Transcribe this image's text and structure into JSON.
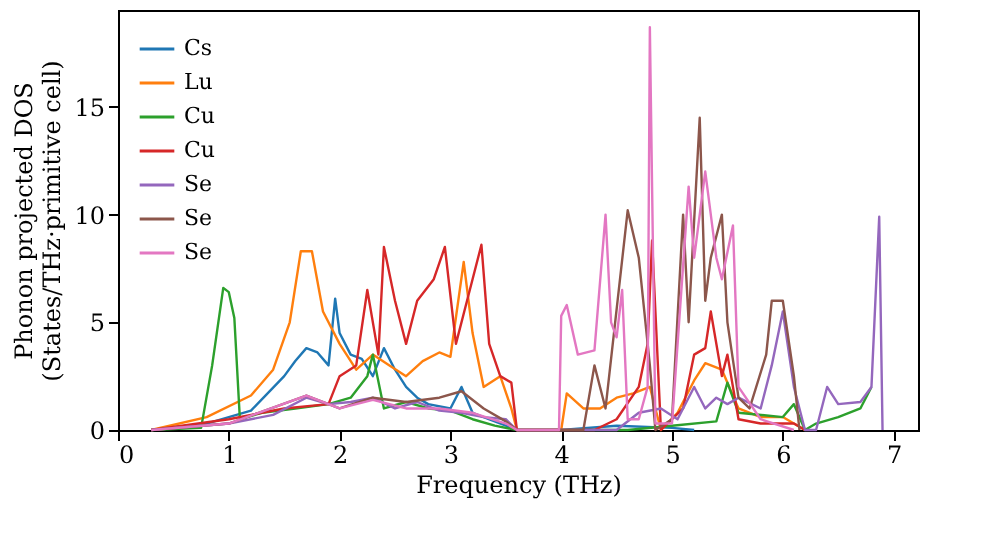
{
  "chart_data": {
    "type": "line",
    "xlabel": "Frequency (THz)",
    "ylabel": "Phonon projected DOS\n(States/THz·primitive cell)",
    "xlim": [
      0,
      7.22
    ],
    "ylim": [
      0,
      19.5
    ],
    "xticks": [
      0,
      1,
      2,
      3,
      4,
      5,
      6,
      7
    ],
    "yticks": [
      0,
      5,
      10,
      15
    ],
    "grid": false,
    "legend": "top left",
    "line_style": "solid",
    "marker": "none",
    "series": [
      {
        "name": "Cs",
        "color": "#1f77b4",
        "x": [
          0.3,
          0.8,
          1.2,
          1.5,
          1.6,
          1.7,
          1.8,
          1.9,
          1.96,
          2.0,
          2.1,
          2.2,
          2.3,
          2.4,
          2.5,
          2.6,
          2.7,
          2.8,
          3.0,
          3.1,
          3.2,
          3.4,
          3.6,
          4.0,
          4.5,
          5.0,
          5.2
        ],
        "values": [
          0,
          0.3,
          0.9,
          2.5,
          3.2,
          3.8,
          3.6,
          3.0,
          6.1,
          4.5,
          3.5,
          3.3,
          2.5,
          3.8,
          2.8,
          2.0,
          1.5,
          1.2,
          1.0,
          2.0,
          0.8,
          0.4,
          0,
          0,
          0.2,
          0.1,
          0
        ]
      },
      {
        "name": "Lu",
        "color": "#ff7f0e",
        "x": [
          0.3,
          0.8,
          1.2,
          1.4,
          1.55,
          1.65,
          1.75,
          1.85,
          2.0,
          2.15,
          2.3,
          2.45,
          2.6,
          2.75,
          2.9,
          3.0,
          3.12,
          3.2,
          3.3,
          3.45,
          3.55,
          3.6,
          4.0,
          4.05,
          4.2,
          4.35,
          4.5,
          4.65,
          4.8,
          4.9,
          5.05,
          5.2,
          5.3,
          5.45,
          5.6,
          5.8,
          6.0,
          6.2
        ],
        "values": [
          0,
          0.6,
          1.6,
          2.8,
          5.0,
          8.3,
          8.3,
          5.5,
          4.0,
          2.8,
          3.5,
          3.0,
          2.5,
          3.2,
          3.6,
          3.4,
          7.8,
          4.5,
          2.0,
          2.5,
          1.0,
          0,
          0,
          1.7,
          1.0,
          1.0,
          1.5,
          1.7,
          2.0,
          0,
          0.8,
          2.3,
          3.1,
          2.8,
          1.0,
          0.6,
          0.6,
          0
        ]
      },
      {
        "name": "Cu",
        "color": "#2ca02c",
        "x": [
          0.3,
          0.75,
          0.85,
          0.95,
          1.0,
          1.05,
          1.1,
          1.3,
          1.6,
          1.9,
          2.1,
          2.25,
          2.3,
          2.4,
          2.6,
          2.8,
          3.0,
          3.2,
          3.4,
          3.6,
          4.6,
          5.0,
          5.4,
          5.5,
          5.6,
          6.0,
          6.1,
          6.2,
          6.3,
          6.5,
          6.7,
          6.8
        ],
        "values": [
          0,
          0.1,
          3.0,
          6.6,
          6.4,
          5.2,
          0.5,
          0.8,
          1.0,
          1.2,
          1.5,
          2.5,
          3.5,
          1.0,
          1.3,
          1.0,
          0.9,
          0.5,
          0.2,
          0,
          0,
          0.2,
          0.4,
          2.2,
          0.8,
          0.6,
          1.2,
          0,
          0.3,
          0.6,
          1.0,
          2.0
        ]
      },
      {
        "name": "Cu",
        "color": "#d62728",
        "x": [
          0.3,
          1.0,
          1.5,
          1.9,
          2.0,
          2.15,
          2.25,
          2.35,
          2.4,
          2.5,
          2.6,
          2.7,
          2.85,
          2.95,
          3.05,
          3.15,
          3.2,
          3.28,
          3.35,
          3.45,
          3.55,
          3.6,
          4.3,
          4.5,
          4.7,
          4.78,
          4.82,
          4.9,
          5.1,
          5.2,
          5.3,
          5.35,
          5.45,
          5.5,
          5.6,
          5.8,
          6.1,
          6.2
        ],
        "values": [
          0,
          0.5,
          1.0,
          1.2,
          2.5,
          3.0,
          6.5,
          3.5,
          8.5,
          6.0,
          4.0,
          6.0,
          7.0,
          8.5,
          4.0,
          6.0,
          7.0,
          8.6,
          4.0,
          2.5,
          2.2,
          0,
          0,
          0.5,
          2.0,
          4.0,
          8.8,
          0,
          1.0,
          3.5,
          3.8,
          5.5,
          2.5,
          3.5,
          0.5,
          0.3,
          0.3,
          0
        ]
      },
      {
        "name": "Se",
        "color": "#9467bd",
        "x": [
          0.3,
          1.0,
          1.4,
          1.7,
          1.9,
          2.1,
          2.3,
          2.5,
          2.7,
          2.9,
          3.1,
          3.3,
          3.5,
          3.6,
          4.5,
          4.7,
          4.9,
          5.05,
          5.2,
          5.3,
          5.4,
          5.5,
          5.6,
          5.8,
          5.9,
          6.0,
          6.1,
          6.2,
          6.3,
          6.4,
          6.5,
          6.7,
          6.8,
          6.87,
          6.9
        ],
        "values": [
          0,
          0.3,
          0.7,
          1.5,
          1.2,
          1.3,
          1.5,
          1.0,
          1.3,
          0.9,
          0.8,
          0.6,
          0.5,
          0,
          0,
          0.8,
          1.0,
          0.5,
          2.0,
          1.0,
          1.5,
          1.2,
          1.5,
          1.0,
          3.0,
          5.5,
          2.0,
          0,
          0,
          2.0,
          1.2,
          1.3,
          2.0,
          9.9,
          0
        ]
      },
      {
        "name": "Se",
        "color": "#8c564b",
        "x": [
          0.3,
          1.0,
          1.7,
          2.0,
          2.3,
          2.6,
          2.9,
          3.1,
          3.3,
          3.5,
          3.6,
          4.2,
          4.3,
          4.4,
          4.6,
          4.7,
          4.8,
          4.85,
          5.0,
          5.1,
          5.15,
          5.25,
          5.3,
          5.35,
          5.45,
          5.5,
          5.6,
          5.7,
          5.85,
          5.9,
          6.0,
          6.1,
          6.15
        ],
        "values": [
          0,
          0.3,
          1.6,
          1.0,
          1.5,
          1.3,
          1.5,
          1.8,
          1.0,
          0.4,
          0,
          0,
          3.0,
          1.0,
          10.2,
          8.0,
          3.0,
          0,
          0.5,
          10.0,
          5.0,
          14.5,
          6.0,
          8.0,
          10.0,
          5.0,
          1.5,
          1.0,
          3.5,
          6.0,
          6.0,
          2.5,
          0
        ]
      },
      {
        "name": "Se",
        "color": "#e377c2",
        "x": [
          0.3,
          1.0,
          1.7,
          2.0,
          2.3,
          2.6,
          2.9,
          3.2,
          3.5,
          3.6,
          3.98,
          4.0,
          4.05,
          4.15,
          4.3,
          4.4,
          4.45,
          4.5,
          4.55,
          4.6,
          4.7,
          4.78,
          4.8,
          4.85,
          5.0,
          5.15,
          5.2,
          5.3,
          5.4,
          5.45,
          5.55,
          5.6,
          5.8,
          6.1
        ],
        "values": [
          0,
          0.3,
          1.6,
          1.0,
          1.4,
          1.0,
          1.0,
          0.8,
          0.3,
          0,
          0,
          5.3,
          5.8,
          3.5,
          3.7,
          10.0,
          5.0,
          4.3,
          6.5,
          0.5,
          0.5,
          2.0,
          18.7,
          0.3,
          0.3,
          11.3,
          8.0,
          12.0,
          8.0,
          7.0,
          9.5,
          2.0,
          0.5,
          0
        ]
      }
    ]
  }
}
